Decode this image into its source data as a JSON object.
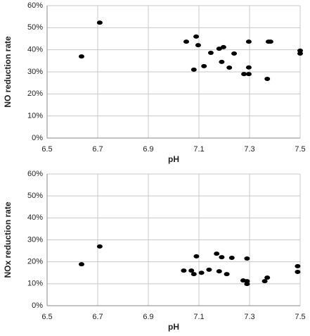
{
  "chart_data": [
    {
      "type": "scatter",
      "x_label": "pH",
      "y_label": "NO reduction rate",
      "color": "#000000",
      "grid": true,
      "x": [
        6.636,
        6.708,
        7.05,
        7.089,
        7.097,
        7.08,
        7.12,
        7.147,
        7.18,
        7.197,
        7.19,
        7.22,
        7.239,
        7.278,
        7.297,
        7.297,
        7.297,
        7.375,
        7.383,
        7.37,
        7.5,
        7.5
      ],
      "values": [
        37.0,
        52.3,
        43.7,
        46.0,
        42.1,
        31.0,
        32.6,
        38.6,
        40.5,
        41.2,
        34.5,
        31.9,
        38.3,
        29.0,
        29.0,
        32.0,
        43.7,
        43.7,
        43.7,
        26.8,
        39.6,
        38.3
      ],
      "xlim": [
        6.5,
        7.5
      ],
      "xticks": [
        6.5,
        6.7,
        6.9,
        7.1,
        7.3,
        7.5
      ],
      "ylim": [
        0,
        60
      ],
      "yticks": [
        {
          "value": 0,
          "label": "0%"
        },
        {
          "value": 10,
          "label": "10%"
        },
        {
          "value": 20,
          "label": "20%"
        },
        {
          "value": 30,
          "label": "30%"
        },
        {
          "value": 40,
          "label": "40%"
        },
        {
          "value": 50,
          "label": "50%"
        },
        {
          "value": 60,
          "label": "60%"
        }
      ]
    },
    {
      "type": "scatter",
      "x_label": "pH",
      "y_label": "NOx reduction rate",
      "color": "#000000",
      "grid": true,
      "x": [
        6.636,
        6.708,
        7.04,
        7.07,
        7.08,
        7.09,
        7.11,
        7.14,
        7.17,
        7.19,
        7.18,
        7.21,
        7.23,
        7.275,
        7.29,
        7.29,
        7.29,
        7.36,
        7.37,
        7.49,
        7.49
      ],
      "values": [
        18.9,
        27.0,
        16.0,
        16.0,
        14.4,
        22.5,
        15.0,
        16.4,
        23.7,
        22.1,
        15.7,
        14.4,
        21.8,
        11.5,
        11.2,
        9.9,
        21.5,
        11.2,
        12.8,
        18.0,
        15.4
      ],
      "xlim": [
        6.5,
        7.5
      ],
      "xticks": [
        6.5,
        6.7,
        6.9,
        7.1,
        7.3,
        7.5
      ],
      "ylim": [
        0,
        60
      ],
      "yticks": [
        {
          "value": 0,
          "label": "0%"
        },
        {
          "value": 10,
          "label": "10%"
        },
        {
          "value": 20,
          "label": "20%"
        },
        {
          "value": 30,
          "label": "30%"
        },
        {
          "value": 40,
          "label": "40%"
        },
        {
          "value": 50,
          "label": "50%"
        },
        {
          "value": 60,
          "label": "60%"
        }
      ]
    }
  ]
}
